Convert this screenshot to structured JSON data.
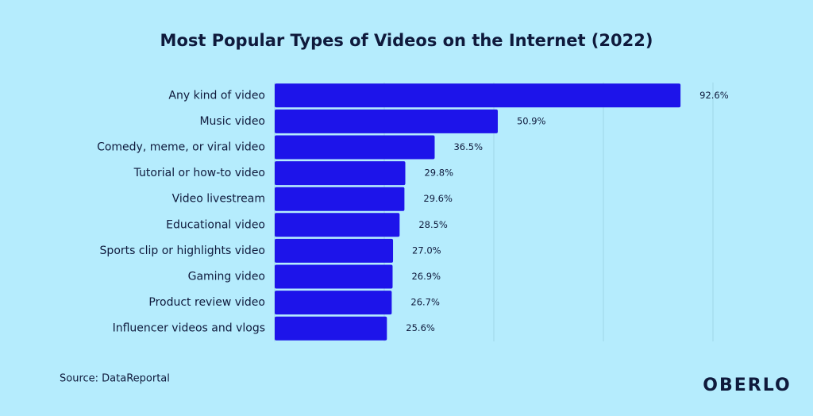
{
  "chart_data": {
    "type": "bar",
    "orientation": "horizontal",
    "title": "Most Popular Types of Videos on the Internet (2022)",
    "categories": [
      "Any kind of video",
      "Music video",
      "Comedy, meme, or viral video",
      "Tutorial or how-to video",
      "Video livestream",
      "Educational video",
      "Sports clip or highlights video",
      "Gaming video",
      "Product review video",
      "Influencer videos and vlogs"
    ],
    "values": [
      92.6,
      50.9,
      36.5,
      29.8,
      29.6,
      28.5,
      27.0,
      26.9,
      26.7,
      25.6
    ],
    "value_labels": [
      "92.6%",
      "50.9%",
      "36.5%",
      "29.8%",
      "29.6%",
      "28.5%",
      "27.0%",
      "26.9%",
      "26.7%",
      "25.6%"
    ],
    "color": "#1d14ea",
    "xlim": [
      0,
      100
    ],
    "xticks": [
      0,
      25,
      50,
      75,
      100
    ],
    "grid": true,
    "source": "Source: DataReportal",
    "logo": "OBERLO"
  }
}
